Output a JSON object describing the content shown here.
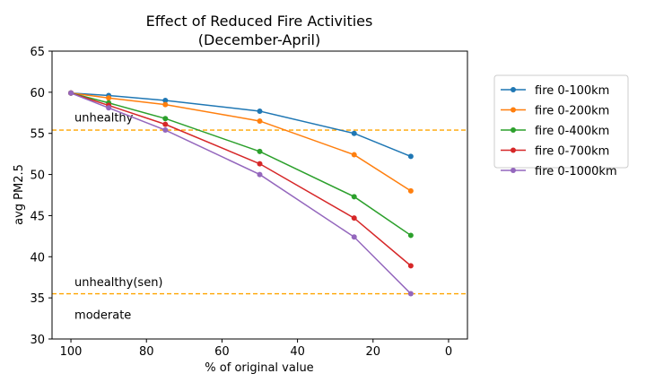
{
  "chart_data": {
    "type": "line",
    "title": "Effect of Reduced Fire Activities",
    "subtitle": "(December-April)",
    "xlabel": "% of original value",
    "ylabel": "avg PM2.5",
    "xlim": [
      105,
      -5
    ],
    "ylim": [
      30,
      65
    ],
    "x_inverted": true,
    "x_ticks": [
      100,
      80,
      60,
      40,
      20,
      0
    ],
    "y_ticks": [
      30,
      35,
      40,
      45,
      50,
      55,
      60,
      65
    ],
    "grid": false,
    "legend_position": "outside-top-right",
    "x": [
      100,
      90,
      75,
      50,
      25,
      10
    ],
    "series": [
      {
        "name": "fire 0-100km",
        "color": "#1f77b4",
        "values": [
          59.9,
          59.6,
          59.0,
          57.7,
          55.0,
          52.2
        ]
      },
      {
        "name": "fire 0-200km",
        "color": "#ff7f0e",
        "values": [
          59.9,
          59.3,
          58.5,
          56.5,
          52.4,
          48.0
        ]
      },
      {
        "name": "fire 0-400km",
        "color": "#2ca02c",
        "values": [
          59.9,
          58.7,
          56.8,
          52.8,
          47.3,
          42.6
        ]
      },
      {
        "name": "fire 0-700km",
        "color": "#d62728",
        "values": [
          59.9,
          58.4,
          56.1,
          51.3,
          44.7,
          38.9
        ]
      },
      {
        "name": "fire 0-1000km",
        "color": "#9467bd",
        "values": [
          59.9,
          58.1,
          55.4,
          50.0,
          42.4,
          35.5
        ]
      }
    ],
    "thresholds": [
      {
        "value": 55.4,
        "color": "#ffa500"
      },
      {
        "value": 35.5,
        "color": "#ffa500"
      }
    ],
    "annotations": [
      {
        "text": "unhealthy",
        "x": 100,
        "y": 57.0
      },
      {
        "text": "unhealthy(sen)",
        "x": 100,
        "y": 37.0
      },
      {
        "text": "moderate",
        "x": 100,
        "y": 33.0
      }
    ]
  }
}
